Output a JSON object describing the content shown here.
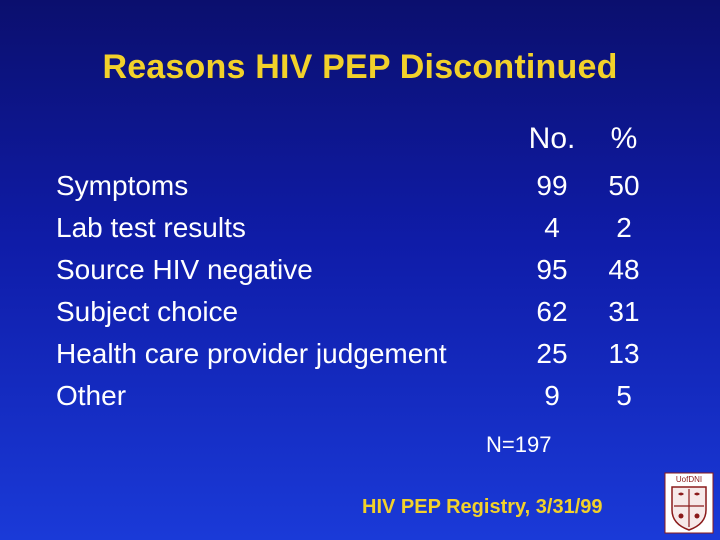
{
  "title": "Reasons HIV PEP Discontinued",
  "headers": {
    "number": "No.",
    "percent": "%"
  },
  "rows": [
    {
      "reason": "Symptoms",
      "number": "99",
      "percent": "50"
    },
    {
      "reason": "Lab test results",
      "number": "4",
      "percent": "2"
    },
    {
      "reason": "Source HIV negative",
      "number": "95",
      "percent": "48"
    },
    {
      "reason": "Subject choice",
      "number": "62",
      "percent": "31"
    },
    {
      "reason": "Health care provider judgement",
      "number": "25",
      "percent": "13"
    },
    {
      "reason": "Other",
      "number": "9",
      "percent": "5"
    }
  ],
  "total": "N=197",
  "source": "HIV PEP Registry, 3/31/99",
  "logo": {
    "text": "UofDNI",
    "icon": "university-crest-icon"
  },
  "colors": {
    "background_top": "#0b0f6e",
    "background_bottom": "#1a3ad8",
    "title": "#f2d12a",
    "body_text": "#ffffff",
    "source": "#f2d12a"
  }
}
